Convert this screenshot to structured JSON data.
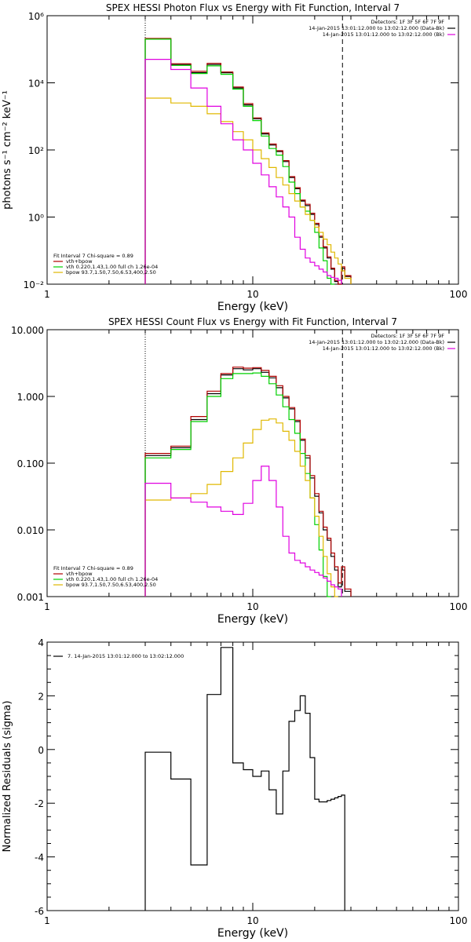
{
  "colors": {
    "data": "#000000",
    "total": "#b00000",
    "vth": "#00d000",
    "bpow": "#e0b800",
    "background": "#e000e0"
  },
  "chart_data": [
    {
      "type": "line",
      "title": "SPEX HESSI Photon Flux vs Energy with Fit Function, Interval 7",
      "xlabel": "Energy (keV)",
      "ylabel": "photons s⁻¹ cm⁻² keV⁻¹",
      "xscale": "log",
      "yscale": "log",
      "xlim": [
        1,
        100
      ],
      "ylim": [
        0.01,
        1000000
      ],
      "xticks": [
        {
          "v": 1,
          "label": "1"
        },
        {
          "v": 10,
          "label": "10"
        },
        {
          "v": 100,
          "label": "100"
        }
      ],
      "yticks": [
        {
          "v": 0.01,
          "label": "10⁻²"
        },
        {
          "v": 1,
          "label": "10⁰"
        },
        {
          "v": 100,
          "label": "10²"
        },
        {
          "v": 10000,
          "label": "10⁴"
        },
        {
          "v": 1000000,
          "label": "10⁶"
        }
      ],
      "info_lines": [
        "Detectors: 1F 3F 5F 6F 7F 9F",
        "14-Jan-2015 13:01:12.000 to 13:02:12.000 (Data-Bk)",
        "14-Jan-2015 13:01:12.000 to 13:02:12.000 (Bk)"
      ],
      "info_colors": [
        "#000000",
        "#000000",
        "#e000e0"
      ],
      "legend": [
        "Fit Interval 7   Chi-square = 0.89",
        "vth+bpow",
        "vth 0.220,1.43,1.00  full ch 1.26e-04",
        "bpow 93.7,1.50,7.50,6.53,400,2.50"
      ],
      "legend_colors": [
        "#000000",
        "#b00000",
        "#00d000",
        "#e0b800"
      ],
      "vlines": [
        {
          "x": 3,
          "style": "dotted"
        },
        {
          "x": 27.3,
          "style": "dashed"
        }
      ],
      "edges": [
        3,
        4,
        5,
        6,
        7,
        8,
        9,
        10,
        11,
        12,
        13,
        14,
        15,
        16,
        17,
        18,
        19,
        20,
        21,
        22,
        23,
        24,
        25,
        26,
        27,
        28,
        30
      ],
      "series": [
        {
          "name": "Data-Bk",
          "color": "#000000",
          "values": [
            200000,
            35000,
            20000,
            35000,
            20000,
            7000,
            2200,
            850,
            300,
            140,
            90,
            45,
            15,
            7,
            3,
            2.2,
            1.2,
            0.6,
            0.25,
            0.12,
            0.06,
            0.028,
            0.012,
            0.006,
            0.03,
            0.017
          ]
        },
        {
          "name": "vth+bpow",
          "color": "#b00000",
          "values": [
            210000,
            37000,
            22000,
            38000,
            21000,
            7500,
            2400,
            900,
            320,
            150,
            95,
            48,
            16,
            7.5,
            3.2,
            2.4,
            1.3,
            0.65,
            0.27,
            0.13,
            0.065,
            0.03,
            0.013,
            0.007,
            0.033,
            0.018
          ]
        },
        {
          "name": "vth",
          "color": "#00d000",
          "values": [
            200000,
            33000,
            19000,
            32000,
            18000,
            6500,
            2000,
            750,
            260,
            110,
            70,
            32,
            11,
            5,
            2,
            1.5,
            0.8,
            0.35,
            0.12,
            0.05,
            0.015,
            0.009
          ]
        },
        {
          "name": "bpow",
          "color": "#e0b800",
          "values": [
            3500,
            2500,
            2000,
            1200,
            700,
            350,
            200,
            100,
            55,
            30,
            15,
            9,
            5,
            3,
            2,
            1.2,
            0.8,
            0.5,
            0.35,
            0.22,
            0.15,
            0.09,
            0.06,
            0.04,
            0.025,
            0.015
          ]
        },
        {
          "name": "Bk",
          "color": "#e000e0",
          "values": [
            50000,
            25000,
            7000,
            2000,
            600,
            200,
            100,
            40,
            18,
            8,
            4,
            2,
            1,
            0.25,
            0.11,
            0.06,
            0.045,
            0.035,
            0.028,
            0.023,
            0.018,
            0.016,
            0.015,
            0.013
          ]
        }
      ]
    },
    {
      "type": "line",
      "title": "SPEX HESSI Count Flux vs Energy with Fit Function, Interval 7",
      "xlabel": "Energy (keV)",
      "ylabel": "",
      "xscale": "log",
      "yscale": "log",
      "xlim": [
        1,
        100
      ],
      "ylim": [
        0.001,
        10
      ],
      "xticks": [
        {
          "v": 1,
          "label": "1"
        },
        {
          "v": 10,
          "label": "10"
        },
        {
          "v": 100,
          "label": "100"
        }
      ],
      "yticks": [
        {
          "v": 0.001,
          "label": "0.001"
        },
        {
          "v": 0.01,
          "label": "0.010"
        },
        {
          "v": 0.1,
          "label": "0.100"
        },
        {
          "v": 1,
          "label": "1.000"
        },
        {
          "v": 10,
          "label": "10.000"
        }
      ],
      "info_lines": [
        "Detectors: 1F 3F 5F 6F 7F 9F",
        "14-Jan-2015 13:01:12.000 to 13:02:12.000 (Data-Bk)",
        "14-Jan-2015 13:01:12.000 to 13:02:12.000 (Bk)"
      ],
      "info_colors": [
        "#000000",
        "#000000",
        "#e000e0"
      ],
      "legend": [
        "Fit Interval 7   Chi-square = 0.89",
        "vth+bpow",
        "vth 0.220,1.43,1.00  full ch 1.26e-04",
        "bpow 93.7,1.50,7.50,6.53,400,2.50"
      ],
      "legend_colors": [
        "#000000",
        "#b00000",
        "#00d000",
        "#e0b800"
      ],
      "vlines": [
        {
          "x": 3,
          "style": "dotted"
        },
        {
          "x": 27.3,
          "style": "dashed"
        }
      ],
      "edges": [
        3,
        4,
        5,
        6,
        7,
        8,
        9,
        10,
        11,
        12,
        13,
        14,
        15,
        16,
        17,
        18,
        19,
        20,
        21,
        22,
        23,
        24,
        25,
        26,
        27,
        28,
        30
      ],
      "series": [
        {
          "name": "Data-Bk",
          "color": "#000000",
          "values": [
            0.13,
            0.17,
            0.45,
            1.1,
            2.1,
            2.6,
            2.5,
            2.6,
            2.3,
            1.9,
            1.35,
            0.95,
            0.65,
            0.42,
            0.22,
            0.12,
            0.06,
            0.032,
            0.018,
            0.01,
            0.007,
            0.004,
            0.0025,
            0.0014,
            0.0025,
            0.0012
          ]
        },
        {
          "name": "vth+bpow",
          "color": "#b00000",
          "values": [
            0.14,
            0.18,
            0.5,
            1.2,
            2.2,
            2.75,
            2.65,
            2.7,
            2.45,
            2.0,
            1.45,
            1.0,
            0.68,
            0.44,
            0.23,
            0.13,
            0.065,
            0.035,
            0.019,
            0.011,
            0.0075,
            0.0045,
            0.0028,
            0.0016,
            0.0028,
            0.0013
          ]
        },
        {
          "name": "vth",
          "color": "#00d000",
          "values": [
            0.12,
            0.16,
            0.42,
            1.0,
            1.85,
            2.2,
            2.2,
            2.25,
            2.0,
            1.55,
            1.05,
            0.7,
            0.45,
            0.28,
            0.14,
            0.07,
            0.03,
            0.012,
            0.005,
            0.002,
            0.001
          ]
        },
        {
          "name": "bpow",
          "color": "#e0b800",
          "values": [
            0.028,
            0.03,
            0.035,
            0.048,
            0.075,
            0.12,
            0.2,
            0.32,
            0.44,
            0.46,
            0.4,
            0.3,
            0.22,
            0.15,
            0.09,
            0.055,
            0.03,
            0.016,
            0.008,
            0.004,
            0.0022,
            0.0014,
            0.0009
          ]
        },
        {
          "name": "Bk",
          "color": "#e000e0",
          "values": [
            0.05,
            0.03,
            0.026,
            0.022,
            0.019,
            0.017,
            0.025,
            0.055,
            0.09,
            0.055,
            0.022,
            0.008,
            0.0045,
            0.0035,
            0.0032,
            0.0028,
            0.0025,
            0.0023,
            0.0021,
            0.0019,
            0.0017,
            0.0015,
            0.0014,
            0.0013
          ]
        }
      ]
    },
    {
      "type": "line",
      "title": "",
      "xlabel": "Energy (keV)",
      "ylabel": "Normalized Residuals (sigma)",
      "xscale": "log",
      "yscale": "linear",
      "xlim": [
        1,
        100
      ],
      "ylim": [
        -6,
        4
      ],
      "xticks": [
        {
          "v": 1,
          "label": "1"
        },
        {
          "v": 10,
          "label": "10"
        },
        {
          "v": 100,
          "label": "100"
        }
      ],
      "yticks": [
        {
          "v": -6,
          "label": "-6"
        },
        {
          "v": -4,
          "label": "-4"
        },
        {
          "v": -2,
          "label": "-2"
        },
        {
          "v": 0,
          "label": "0"
        },
        {
          "v": 2,
          "label": "2"
        },
        {
          "v": 4,
          "label": "4"
        }
      ],
      "legend": [
        "7. 14-Jan-2015 13:01:12.000 to 13:02:12.000"
      ],
      "legend_colors": [
        "#000000"
      ],
      "edges": [
        3,
        4,
        5,
        6,
        7,
        8,
        9,
        10,
        11,
        12,
        13,
        14,
        15,
        16,
        17,
        18,
        19,
        20,
        21,
        22,
        23,
        24,
        25,
        26,
        27,
        28
      ],
      "series": [
        {
          "name": "Residuals",
          "color": "#000000",
          "values": [
            -0.1,
            -1.1,
            -4.3,
            2.05,
            3.8,
            -0.5,
            -0.75,
            -1.0,
            -0.8,
            -1.5,
            -2.4,
            -0.8,
            1.05,
            1.45,
            2.0,
            1.35,
            -0.3,
            -1.85,
            -1.95,
            -1.95,
            -1.9,
            -1.85,
            -1.8,
            -1.75,
            -1.7
          ]
        }
      ]
    }
  ]
}
